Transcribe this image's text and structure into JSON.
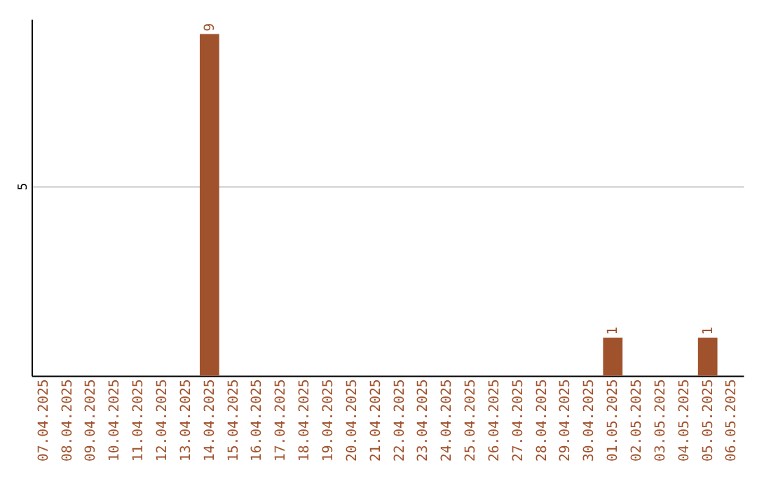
{
  "chart_data": {
    "type": "bar",
    "categories": [
      "07.04.2025",
      "08.04.2025",
      "09.04.2025",
      "10.04.2025",
      "11.04.2025",
      "12.04.2025",
      "13.04.2025",
      "14.04.2025",
      "15.04.2025",
      "16.04.2025",
      "17.04.2025",
      "18.04.2025",
      "19.04.2025",
      "20.04.2025",
      "21.04.2025",
      "22.04.2025",
      "23.04.2025",
      "24.04.2025",
      "25.04.2025",
      "26.04.2025",
      "27.04.2025",
      "28.04.2025",
      "29.04.2025",
      "30.04.2025",
      "01.05.2025",
      "02.05.2025",
      "03.05.2025",
      "04.05.2025",
      "05.05.2025",
      "06.05.2025"
    ],
    "values": [
      0,
      0,
      0,
      0,
      0,
      0,
      0,
      9,
      0,
      0,
      0,
      0,
      0,
      0,
      0,
      0,
      0,
      0,
      0,
      0,
      0,
      0,
      0,
      0,
      1,
      0,
      0,
      0,
      1,
      0
    ],
    "value_labels": [
      null,
      null,
      null,
      null,
      null,
      null,
      null,
      "9",
      null,
      null,
      null,
      null,
      null,
      null,
      null,
      null,
      null,
      null,
      null,
      null,
      null,
      null,
      null,
      null,
      "1",
      null,
      null,
      null,
      "1",
      null
    ],
    "color": "#a0522d",
    "ylim": [
      0,
      9.4
    ],
    "yticks": [
      5
    ],
    "grid": "y"
  }
}
